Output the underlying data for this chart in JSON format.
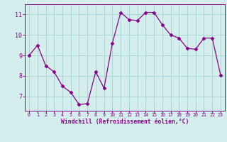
{
  "x": [
    0,
    1,
    2,
    3,
    4,
    5,
    6,
    7,
    8,
    9,
    10,
    11,
    12,
    13,
    14,
    15,
    16,
    17,
    18,
    19,
    20,
    21,
    22,
    23
  ],
  "y": [
    9.0,
    9.5,
    8.5,
    8.2,
    7.5,
    7.2,
    6.6,
    6.65,
    8.2,
    7.4,
    9.6,
    11.1,
    10.75,
    10.7,
    11.1,
    11.1,
    10.5,
    10.0,
    9.85,
    9.35,
    9.3,
    9.85,
    9.85,
    8.05
  ],
  "line_color": "#880088",
  "marker": "D",
  "marker_size": 2.5,
  "bg_color": "#d4eeee",
  "grid_color": "#aad4d4",
  "xlabel": "Windchill (Refroidissement éolien,°C)",
  "xlabel_color": "#880088",
  "tick_label_color": "#880088",
  "spine_color": "#880088",
  "ylim": [
    6.3,
    11.5
  ],
  "xlim": [
    -0.5,
    23.5
  ],
  "yticks": [
    7,
    8,
    9,
    10,
    11
  ],
  "xticks": [
    0,
    1,
    2,
    3,
    4,
    5,
    6,
    7,
    8,
    9,
    10,
    11,
    12,
    13,
    14,
    15,
    16,
    17,
    18,
    19,
    20,
    21,
    22,
    23
  ]
}
